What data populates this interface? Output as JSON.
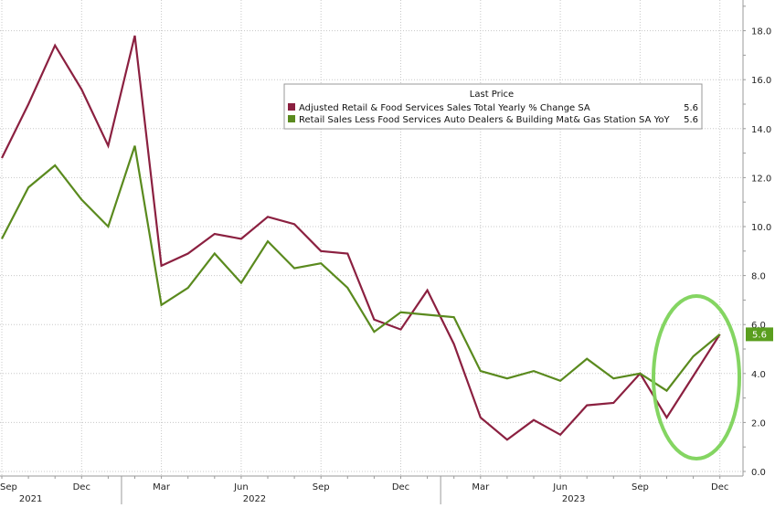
{
  "chart_data": {
    "type": "line",
    "legend": {
      "title": "Last Price",
      "position": "top-right"
    },
    "x_ticks": [
      "Sep",
      "Dec",
      "Mar",
      "Jun",
      "Sep",
      "Dec",
      "Mar",
      "Jun",
      "Sep",
      "Dec"
    ],
    "x_years": [
      "2021",
      "2022",
      "2023"
    ],
    "y_ticks": [
      "0.0",
      "2.0",
      "4.0",
      "6.0",
      "8.0",
      "10.0",
      "12.0",
      "14.0",
      "16.0",
      "18.0"
    ],
    "ylim": [
      0,
      19
    ],
    "grid": true,
    "x": [
      "2021-09",
      "2021-10",
      "2021-11",
      "2021-12",
      "2022-01",
      "2022-02",
      "2022-03",
      "2022-04",
      "2022-05",
      "2022-06",
      "2022-07",
      "2022-08",
      "2022-09",
      "2022-10",
      "2022-11",
      "2022-12",
      "2023-01",
      "2023-02",
      "2023-03",
      "2023-04",
      "2023-05",
      "2023-06",
      "2023-07",
      "2023-08",
      "2023-09",
      "2023-10",
      "2023-11",
      "2023-12"
    ],
    "series": [
      {
        "name": "Adjusted Retail & Food Services Sales Total Yearly % Change SA",
        "last_value": "5.6",
        "color": "#8b2040",
        "values": [
          12.8,
          15.0,
          17.4,
          15.6,
          13.3,
          17.8,
          8.4,
          8.9,
          9.7,
          9.5,
          10.4,
          10.1,
          9.0,
          8.9,
          6.2,
          5.8,
          7.4,
          5.2,
          2.2,
          1.3,
          2.1,
          1.5,
          2.7,
          2.8,
          4.0,
          2.2,
          3.9,
          5.6
        ]
      },
      {
        "name": "Retail Sales Less Food Services Auto Dealers & Building Mat& Gas Station SA YoY",
        "last_value": "5.6",
        "color": "#5a8a1e",
        "values": [
          9.5,
          11.6,
          12.5,
          11.1,
          10.0,
          13.3,
          6.8,
          7.5,
          8.9,
          7.7,
          9.4,
          8.3,
          8.5,
          7.5,
          5.7,
          6.5,
          6.4,
          6.3,
          4.1,
          3.8,
          4.1,
          3.7,
          4.6,
          3.8,
          4.0,
          3.3,
          4.7,
          5.6
        ]
      }
    ],
    "last_price_label": "5.6",
    "highlight": {
      "type": "ellipse",
      "color": "#7dd35a"
    },
    "colors": {
      "tag_bg": "#5a9e1e",
      "tag_text": "#ffffff",
      "grid": "#c8c8c8",
      "axis": "#9a9a9a"
    }
  }
}
